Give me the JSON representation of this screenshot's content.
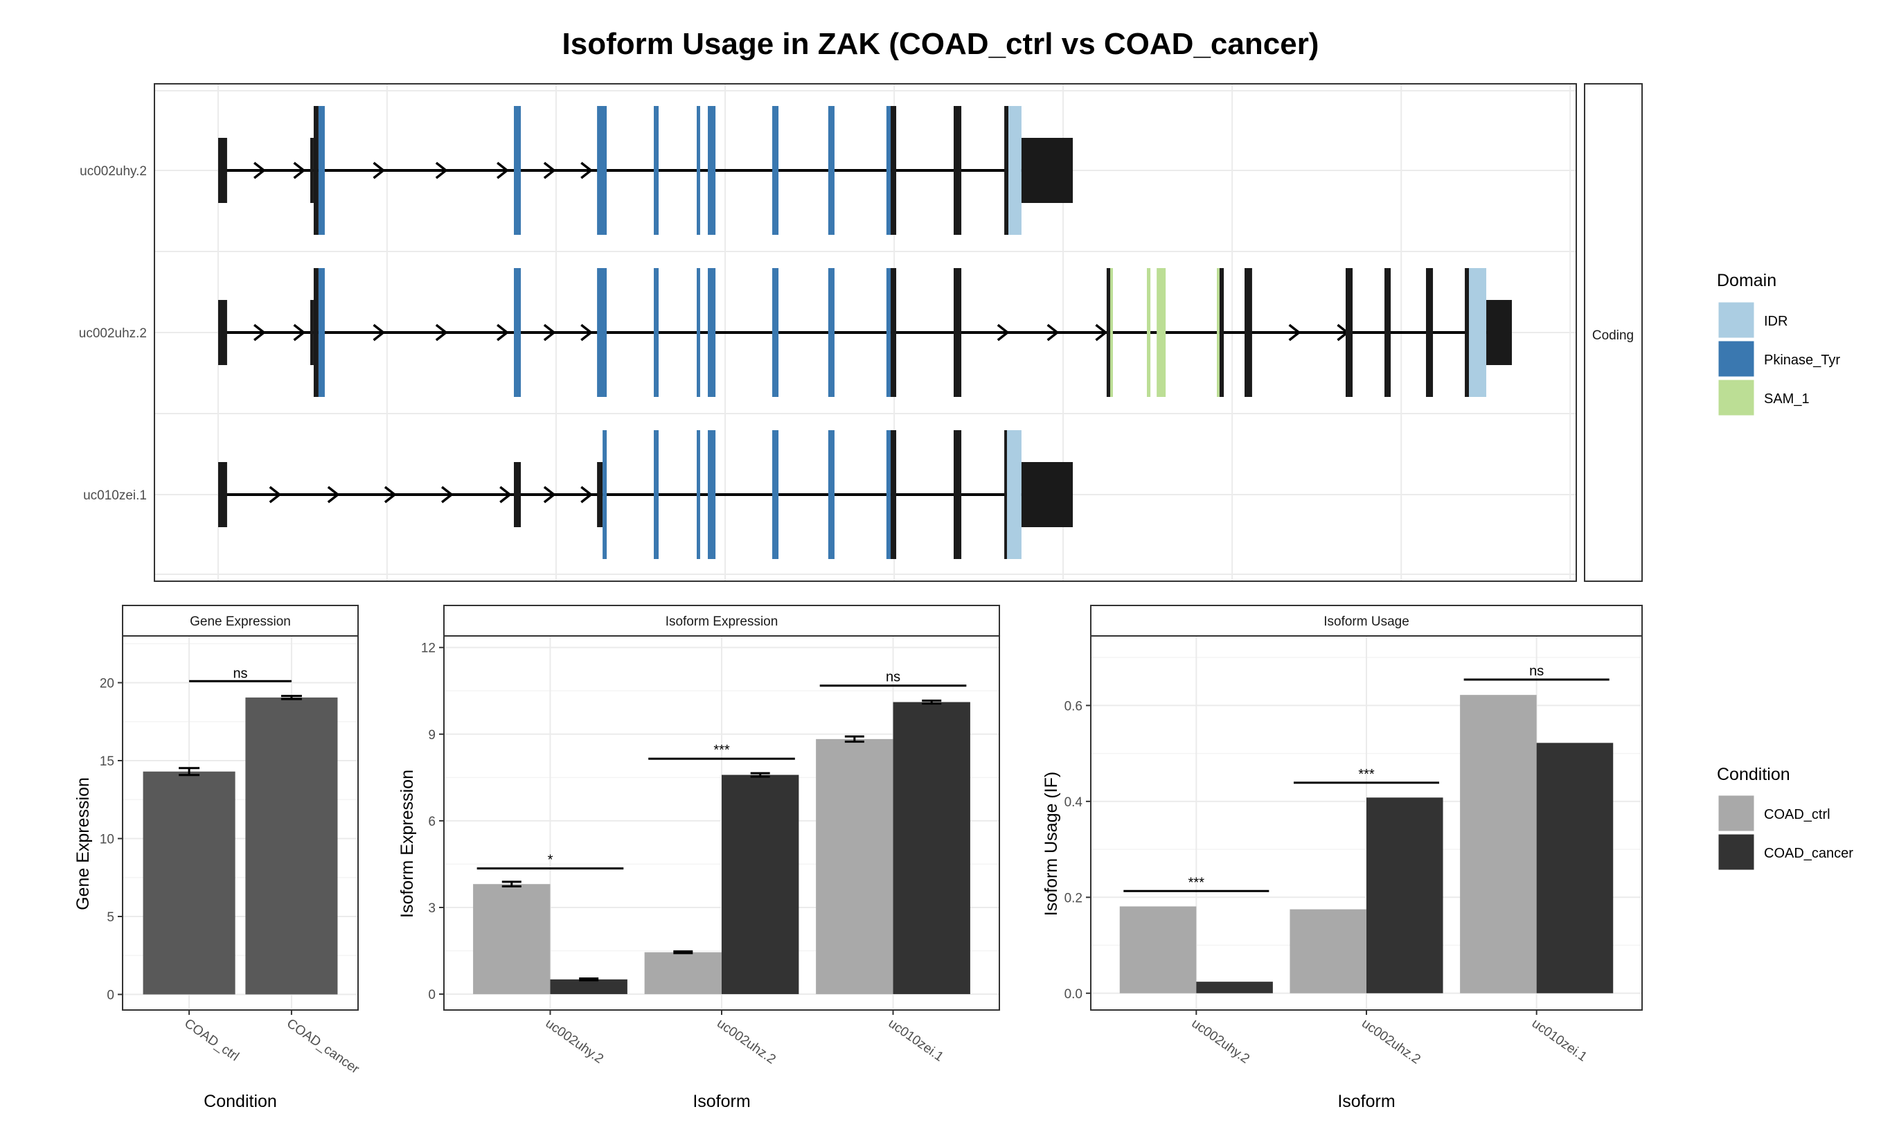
{
  "title": "Isoform Usage in ZAK (COAD_ctrl vs COAD_cancer)",
  "colors": {
    "IDR": "#abcde2",
    "Pkinase_Tyr": "#3a78b0",
    "SAM_1": "#bcde95",
    "exon": "#1a1a1a",
    "COAD_ctrl": "#a9a9a9",
    "COAD_cancer": "#333333",
    "gene_bar": "#595959"
  },
  "chart_data": [
    {
      "type": "diagram",
      "name": "transcript-structure",
      "facet_label": "Coding",
      "x_unit": "relative genomic position (fraction of plotted range)",
      "transcripts": [
        {
          "id": "uc002uhy.2",
          "intron_arrows": [
            0.077,
            0.105,
            0.161,
            0.205,
            0.248,
            0.281,
            0.307
          ],
          "exons": [
            {
              "start": 0.0448,
              "end": 0.0511,
              "kind": "utr"
            },
            {
              "start": 0.1096,
              "end": 0.112,
              "kind": "utr"
            },
            {
              "start": 0.112,
              "end": 0.1154,
              "kind": "cds"
            },
            {
              "start": 0.1154,
              "end": 0.1198,
              "kind": "Pkinase_Tyr"
            },
            {
              "start": 0.2528,
              "end": 0.2577,
              "kind": "Pkinase_Tyr"
            },
            {
              "start": 0.3113,
              "end": 0.3181,
              "kind": "Pkinase_Tyr"
            },
            {
              "start": 0.3512,
              "end": 0.3546,
              "kind": "Pkinase_Tyr"
            },
            {
              "start": 0.3814,
              "end": 0.3838,
              "kind": "Pkinase_Tyr"
            },
            {
              "start": 0.3892,
              "end": 0.3946,
              "kind": "Pkinase_Tyr"
            },
            {
              "start": 0.4345,
              "end": 0.4389,
              "kind": "Pkinase_Tyr"
            },
            {
              "start": 0.4739,
              "end": 0.4783,
              "kind": "Pkinase_Tyr"
            },
            {
              "start": 0.5148,
              "end": 0.5178,
              "kind": "Pkinase_Tyr"
            },
            {
              "start": 0.5178,
              "end": 0.5217,
              "kind": "cds"
            },
            {
              "start": 0.5621,
              "end": 0.5675,
              "kind": "cds"
            },
            {
              "start": 0.5977,
              "end": 0.6006,
              "kind": "cds"
            },
            {
              "start": 0.6006,
              "end": 0.6098,
              "kind": "IDR"
            },
            {
              "start": 0.6098,
              "end": 0.6459,
              "kind": "utr"
            }
          ]
        },
        {
          "id": "uc002uhz.2",
          "intron_arrows": [
            0.077,
            0.105,
            0.161,
            0.205,
            0.248,
            0.281,
            0.307,
            0.6,
            0.635,
            0.669,
            0.805,
            0.839
          ],
          "exons": [
            {
              "start": 0.0448,
              "end": 0.0511,
              "kind": "utr"
            },
            {
              "start": 0.1096,
              "end": 0.112,
              "kind": "utr"
            },
            {
              "start": 0.112,
              "end": 0.1154,
              "kind": "cds"
            },
            {
              "start": 0.1154,
              "end": 0.1198,
              "kind": "Pkinase_Tyr"
            },
            {
              "start": 0.2528,
              "end": 0.2577,
              "kind": "Pkinase_Tyr"
            },
            {
              "start": 0.3113,
              "end": 0.3181,
              "kind": "Pkinase_Tyr"
            },
            {
              "start": 0.3512,
              "end": 0.3546,
              "kind": "Pkinase_Tyr"
            },
            {
              "start": 0.3814,
              "end": 0.3838,
              "kind": "Pkinase_Tyr"
            },
            {
              "start": 0.3892,
              "end": 0.3946,
              "kind": "Pkinase_Tyr"
            },
            {
              "start": 0.4345,
              "end": 0.4389,
              "kind": "Pkinase_Tyr"
            },
            {
              "start": 0.4739,
              "end": 0.4783,
              "kind": "Pkinase_Tyr"
            },
            {
              "start": 0.5148,
              "end": 0.5178,
              "kind": "Pkinase_Tyr"
            },
            {
              "start": 0.5178,
              "end": 0.5217,
              "kind": "cds"
            },
            {
              "start": 0.5621,
              "end": 0.5675,
              "kind": "cds"
            },
            {
              "start": 0.6697,
              "end": 0.6722,
              "kind": "cds"
            },
            {
              "start": 0.6722,
              "end": 0.6741,
              "kind": "SAM_1"
            },
            {
              "start": 0.698,
              "end": 0.7005,
              "kind": "SAM_1"
            },
            {
              "start": 0.7049,
              "end": 0.7112,
              "kind": "SAM_1"
            },
            {
              "start": 0.7472,
              "end": 0.7491,
              "kind": "SAM_1"
            },
            {
              "start": 0.7491,
              "end": 0.7521,
              "kind": "cds"
            },
            {
              "start": 0.7667,
              "end": 0.772,
              "kind": "cds"
            },
            {
              "start": 0.8378,
              "end": 0.8427,
              "kind": "cds"
            },
            {
              "start": 0.8651,
              "end": 0.8695,
              "kind": "cds"
            },
            {
              "start": 0.8943,
              "end": 0.8992,
              "kind": "cds"
            },
            {
              "start": 0.9216,
              "end": 0.9245,
              "kind": "cds"
            },
            {
              "start": 0.9245,
              "end": 0.9367,
              "kind": "IDR"
            },
            {
              "start": 0.9367,
              "end": 0.9547,
              "kind": "utr"
            }
          ]
        },
        {
          "id": "uc010zei.1",
          "intron_arrows": [
            0.088,
            0.129,
            0.169,
            0.209,
            0.25,
            0.281,
            0.307
          ],
          "exons": [
            {
              "start": 0.0448,
              "end": 0.0511,
              "kind": "utr"
            },
            {
              "start": 0.2528,
              "end": 0.2577,
              "kind": "utr"
            },
            {
              "start": 0.3113,
              "end": 0.3152,
              "kind": "utr"
            },
            {
              "start": 0.3152,
              "end": 0.3181,
              "kind": "Pkinase_Tyr"
            },
            {
              "start": 0.3512,
              "end": 0.3546,
              "kind": "Pkinase_Tyr"
            },
            {
              "start": 0.3814,
              "end": 0.3838,
              "kind": "Pkinase_Tyr"
            },
            {
              "start": 0.3892,
              "end": 0.3946,
              "kind": "Pkinase_Tyr"
            },
            {
              "start": 0.4345,
              "end": 0.4389,
              "kind": "Pkinase_Tyr"
            },
            {
              "start": 0.4739,
              "end": 0.4783,
              "kind": "Pkinase_Tyr"
            },
            {
              "start": 0.5148,
              "end": 0.5178,
              "kind": "Pkinase_Tyr"
            },
            {
              "start": 0.5178,
              "end": 0.5217,
              "kind": "cds"
            },
            {
              "start": 0.5621,
              "end": 0.5675,
              "kind": "cds"
            },
            {
              "start": 0.5977,
              "end": 0.5996,
              "kind": "cds"
            },
            {
              "start": 0.5996,
              "end": 0.6098,
              "kind": "IDR"
            },
            {
              "start": 0.6098,
              "end": 0.6459,
              "kind": "utr"
            }
          ]
        }
      ],
      "x_gridlines": [
        0.0448,
        0.1636,
        0.2825,
        0.4014,
        0.5203,
        0.6391,
        0.758,
        0.8769,
        0.9957
      ],
      "legend": {
        "title": "Domain",
        "entries": [
          "IDR",
          "Pkinase_Tyr",
          "SAM_1"
        ],
        "placement": "right"
      }
    },
    {
      "type": "bar",
      "name": "gene-expression",
      "panel_title": "Gene Expression",
      "categories": [
        "COAD_ctrl",
        "COAD_cancer"
      ],
      "values": [
        14.3,
        19.05
      ],
      "errors": [
        0.22,
        0.1
      ],
      "xlabel": "Condition",
      "ylabel": "Gene Expression",
      "ylim": [
        -1.0,
        23.0
      ],
      "yticks": [
        0,
        5,
        10,
        15,
        20
      ],
      "grid": true,
      "significance": [
        {
          "from": 0,
          "to": 1,
          "y": 20.1,
          "label": "ns"
        }
      ]
    },
    {
      "type": "bar",
      "name": "isoform-expression",
      "panel_title": "Isoform Expression",
      "categories": [
        "uc002uhy.2",
        "uc002uhz.2",
        "uc010zei.1"
      ],
      "series": [
        {
          "name": "COAD_ctrl",
          "values": [
            3.81,
            1.45,
            8.83
          ],
          "errors": [
            0.08,
            0.03,
            0.09
          ]
        },
        {
          "name": "COAD_cancer",
          "values": [
            0.51,
            7.59,
            10.11
          ],
          "errors": [
            0.03,
            0.06,
            0.05
          ]
        }
      ],
      "xlabel": "Isoform",
      "ylabel": "Isoform Expression",
      "ylim": [
        -0.55,
        12.4
      ],
      "yticks": [
        0,
        3,
        6,
        9,
        12
      ],
      "grid": true,
      "significance": [
        {
          "category": 0,
          "y": 4.35,
          "label": "*"
        },
        {
          "category": 1,
          "y": 8.15,
          "label": "***"
        },
        {
          "category": 2,
          "y": 10.68,
          "label": "ns"
        }
      ]
    },
    {
      "type": "bar",
      "name": "isoform-usage",
      "panel_title": "Isoform Usage",
      "categories": [
        "uc002uhy.2",
        "uc002uhz.2",
        "uc010zei.1"
      ],
      "series": [
        {
          "name": "COAD_ctrl",
          "values": [
            0.181,
            0.175,
            0.622
          ]
        },
        {
          "name": "COAD_cancer",
          "values": [
            0.024,
            0.408,
            0.522
          ]
        }
      ],
      "xlabel": "Isoform",
      "ylabel": "Isoform Usage (IF)",
      "ylim": [
        -0.035,
        0.745
      ],
      "yticks": [
        0.0,
        0.2,
        0.4,
        0.6
      ],
      "ytick_labels": [
        "0.0",
        "0.2",
        "0.4",
        "0.6"
      ],
      "grid": true,
      "significance": [
        {
          "category": 0,
          "y": 0.213,
          "label": "***"
        },
        {
          "category": 1,
          "y": 0.439,
          "label": "***"
        },
        {
          "category": 2,
          "y": 0.654,
          "label": "ns"
        }
      ],
      "legend": {
        "title": "Condition",
        "entries": [
          "COAD_ctrl",
          "COAD_cancer"
        ],
        "placement": "right"
      }
    }
  ]
}
